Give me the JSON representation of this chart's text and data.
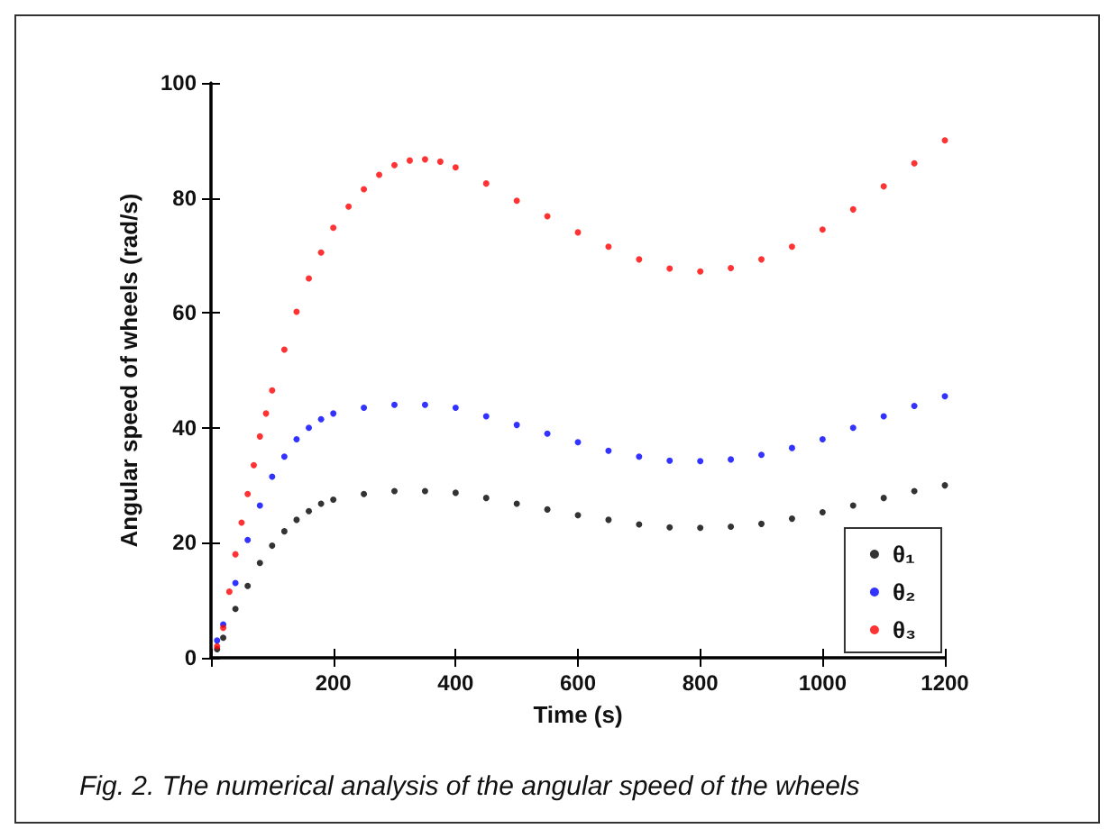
{
  "chart_data": {
    "type": "scatter",
    "xlabel": "Time (s)",
    "ylabel": "Angular speed of wheels (rad/s)",
    "annotations": [
      "Fig. 2. The numerical analysis of the angular speed of the wheels"
    ],
    "xlim": [
      0,
      1200
    ],
    "xticks": [
      {
        "value": 0,
        "label": null
      },
      200,
      400,
      600,
      800,
      1000,
      1200
    ],
    "ylim": [
      0,
      100
    ],
    "yticks": [
      0,
      20,
      40,
      60,
      80,
      100
    ],
    "grid": false,
    "legend": "bottom right",
    "marker": "circle",
    "series": [
      {
        "name": "θ₁",
        "color": "#000000",
        "x": [
          10,
          20,
          40,
          60,
          80,
          100,
          120,
          140,
          160,
          180,
          200,
          250,
          300,
          350,
          400,
          450,
          500,
          550,
          600,
          650,
          700,
          750,
          800,
          850,
          900,
          950,
          1000,
          1050,
          1100,
          1150,
          1200
        ],
        "values": [
          1.5,
          3.5,
          8.5,
          12.5,
          16.5,
          19.5,
          22,
          24,
          25.5,
          26.8,
          27.5,
          28.5,
          29,
          29,
          28.7,
          27.8,
          26.8,
          25.8,
          24.8,
          24,
          23.2,
          22.7,
          22.6,
          22.8,
          23.3,
          24.2,
          25.3,
          26.5,
          27.8,
          29,
          30
        ]
      },
      {
        "name": "θ₂",
        "color": "#0000ff",
        "x": [
          10,
          20,
          40,
          60,
          80,
          100,
          120,
          140,
          160,
          180,
          200,
          250,
          300,
          350,
          400,
          450,
          500,
          550,
          600,
          650,
          700,
          750,
          800,
          850,
          900,
          950,
          1000,
          1050,
          1100,
          1150,
          1200
        ],
        "values": [
          3,
          5.8,
          13,
          20.5,
          26.5,
          31.5,
          35,
          38,
          40,
          41.5,
          42.5,
          43.5,
          44,
          44,
          43.5,
          42,
          40.5,
          39,
          37.5,
          36,
          35,
          34.3,
          34.2,
          34.5,
          35.3,
          36.5,
          38,
          40,
          42,
          43.8,
          45.5
        ]
      },
      {
        "name": "θ₃",
        "color": "#ff0000",
        "x": [
          10,
          20,
          30,
          40,
          50,
          60,
          70,
          80,
          90,
          100,
          120,
          140,
          160,
          180,
          200,
          225,
          250,
          275,
          300,
          325,
          350,
          375,
          400,
          450,
          500,
          550,
          600,
          650,
          700,
          750,
          800,
          850,
          900,
          950,
          1000,
          1050,
          1100,
          1150,
          1200
        ],
        "values": [
          2,
          5.2,
          11.5,
          18,
          23.5,
          28.5,
          33.5,
          38.5,
          42.5,
          46.5,
          53.6,
          60.2,
          66,
          70.5,
          74.8,
          78.5,
          81.5,
          84,
          85.7,
          86.5,
          86.7,
          86.3,
          85.3,
          82.5,
          79.5,
          76.8,
          74,
          71.5,
          69.3,
          67.7,
          67.2,
          67.8,
          69.3,
          71.5,
          74.5,
          78,
          82,
          86,
          90
        ]
      }
    ]
  }
}
